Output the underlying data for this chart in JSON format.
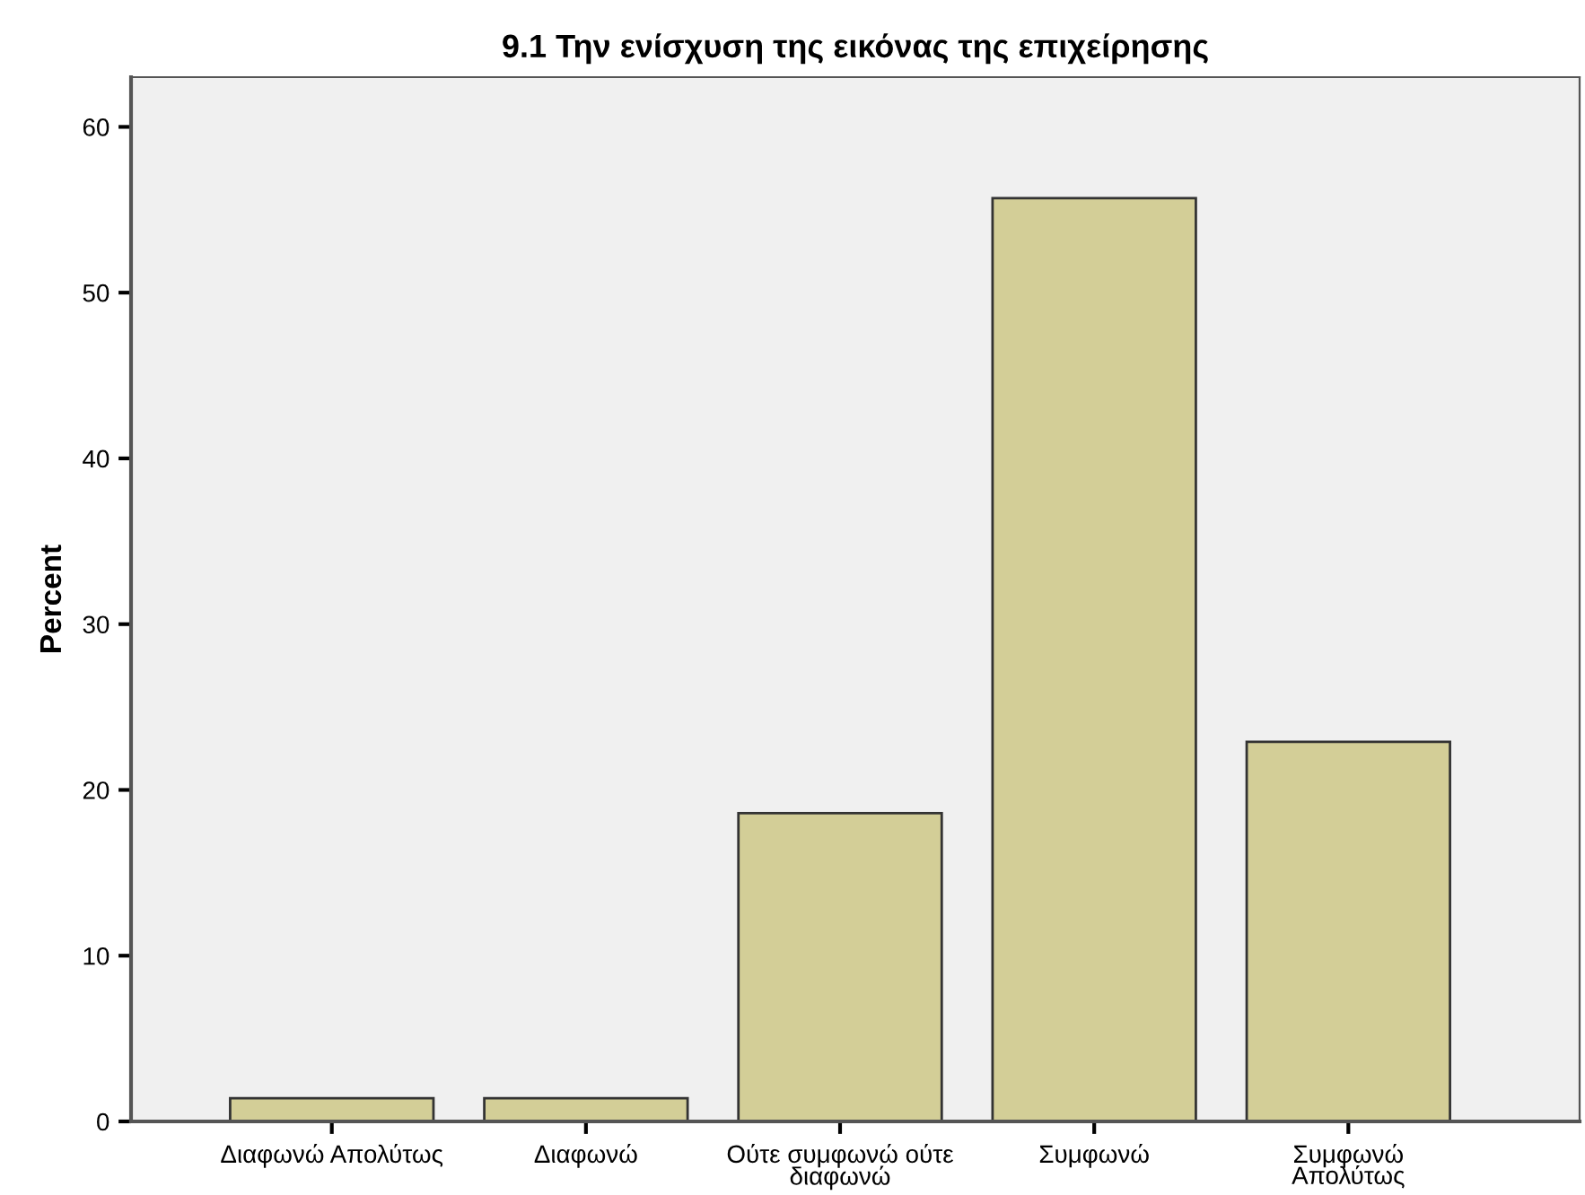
{
  "chart_data": {
    "type": "bar",
    "title": "9.1 Την ενίσχυση της εικόνας της επιχείρησης",
    "ylabel": "Percent",
    "categories": [
      "Διαφωνώ Απολύτως",
      "Διαφωνώ",
      "Ούτε συμφωνώ ούτε\nδιαφωνώ",
      "Συμφωνώ",
      "Συμφωνώ\nΑπολύτως"
    ],
    "values": [
      1.4,
      1.4,
      18.6,
      55.7,
      22.9
    ],
    "color": "#d3ce97",
    "ylim": [
      0,
      63
    ],
    "yticks": [
      0,
      10,
      20,
      30,
      40,
      50,
      60
    ],
    "grid": false,
    "legend": false
  }
}
